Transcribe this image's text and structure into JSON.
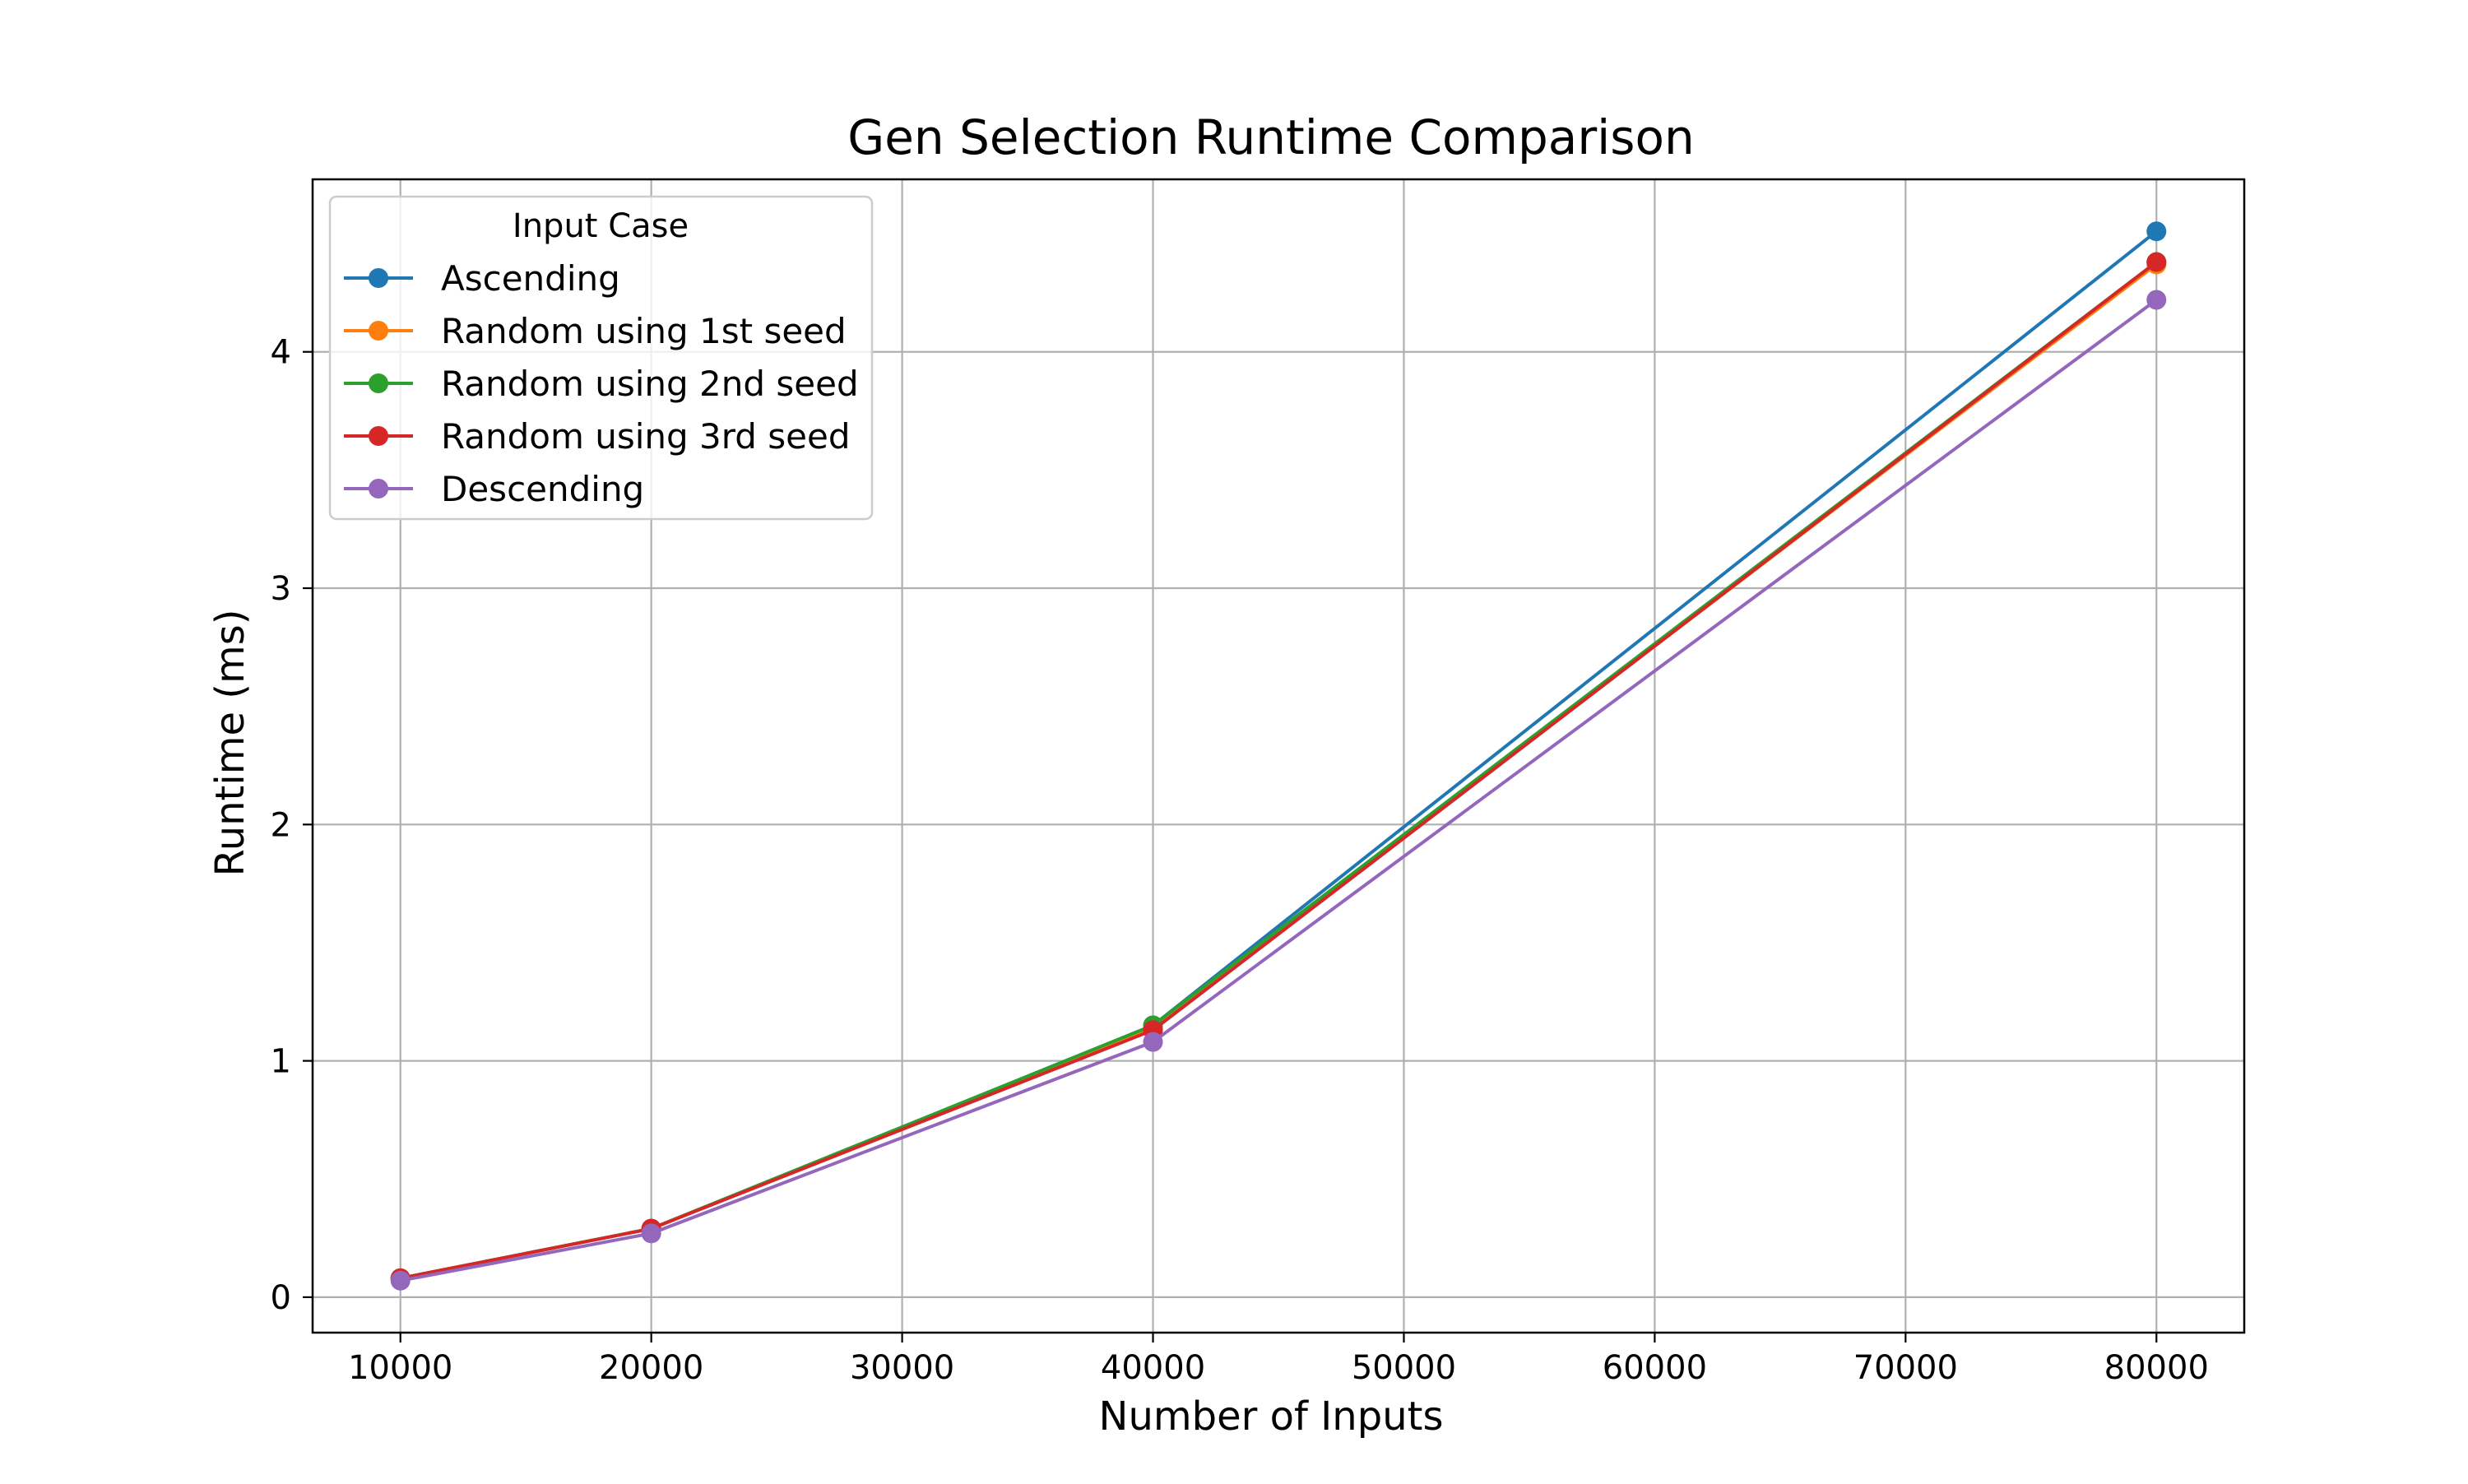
{
  "chart_data": {
    "type": "line",
    "title": "Gen Selection Runtime Comparison",
    "xlabel": "Number of Inputs",
    "ylabel": "Runtime (ms)",
    "x": [
      10000,
      20000,
      40000,
      80000
    ],
    "xlim": [
      6500,
      83500
    ],
    "ylim": [
      -0.15,
      4.73
    ],
    "xticks": [
      10000,
      20000,
      30000,
      40000,
      50000,
      60000,
      70000,
      80000
    ],
    "yticks": [
      0,
      1,
      2,
      3,
      4
    ],
    "grid": true,
    "legend": {
      "title": "Input Case",
      "placement": "top-left"
    },
    "series": [
      {
        "name": "Ascending",
        "color": "#1f77b4",
        "values": [
          0.08,
          0.29,
          1.15,
          4.51
        ]
      },
      {
        "name": "Random using 1st seed",
        "color": "#ff7f0e",
        "values": [
          0.08,
          0.29,
          1.14,
          4.37
        ]
      },
      {
        "name": "Random using 2nd seed",
        "color": "#2ca02c",
        "values": [
          0.08,
          0.29,
          1.15,
          4.38
        ]
      },
      {
        "name": "Random using 3rd seed",
        "color": "#d62728",
        "values": [
          0.08,
          0.29,
          1.13,
          4.38
        ]
      },
      {
        "name": "Descending",
        "color": "#9467bd",
        "values": [
          0.07,
          0.27,
          1.08,
          4.22
        ]
      }
    ]
  }
}
